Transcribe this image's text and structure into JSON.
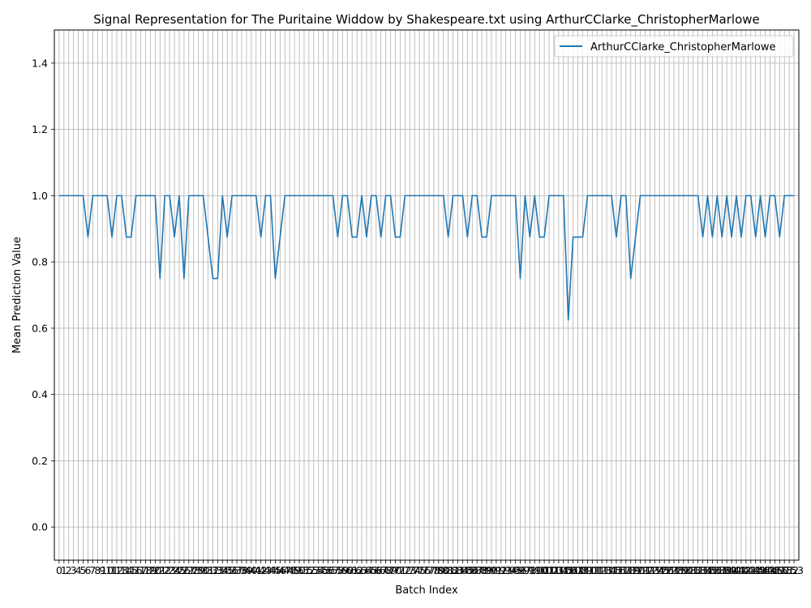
{
  "chart_data": {
    "type": "line",
    "title": "Signal Representation for The Puritaine Widdow by Shakespeare.txt using ArthurCClarke_ChristopherMarlowe",
    "xlabel": "Batch Index",
    "ylabel": "Mean Prediction Value",
    "ylim": [
      -0.1,
      1.5
    ],
    "xlim": [
      -1,
      154
    ],
    "yticks": [
      0.0,
      0.2,
      0.4,
      0.6,
      0.8,
      1.0,
      1.2,
      1.4
    ],
    "ytick_labels": [
      "0.0",
      "0.2",
      "0.4",
      "0.6",
      "0.8",
      "1.0",
      "1.2",
      "1.4"
    ],
    "grid": true,
    "legend_position": "top-right",
    "colors": {
      "series": "#1f77b4",
      "grid": "#b0b0b0",
      "axes": "#000000"
    },
    "x": [
      0,
      1,
      2,
      3,
      4,
      5,
      6,
      7,
      8,
      9,
      10,
      11,
      12,
      13,
      14,
      15,
      16,
      17,
      18,
      19,
      20,
      21,
      22,
      23,
      24,
      25,
      26,
      27,
      28,
      29,
      30,
      31,
      32,
      33,
      34,
      35,
      36,
      37,
      38,
      39,
      40,
      41,
      42,
      43,
      44,
      45,
      46,
      47,
      48,
      49,
      50,
      51,
      52,
      53,
      54,
      55,
      56,
      57,
      58,
      59,
      60,
      61,
      62,
      63,
      64,
      65,
      66,
      67,
      68,
      69,
      70,
      71,
      72,
      73,
      74,
      75,
      76,
      77,
      78,
      79,
      80,
      81,
      82,
      83,
      84,
      85,
      86,
      87,
      88,
      89,
      90,
      91,
      92,
      93,
      94,
      95,
      96,
      97,
      98,
      99,
      100,
      101,
      102,
      103,
      104,
      105,
      106,
      107,
      108,
      109,
      110,
      111,
      112,
      113,
      114,
      115,
      116,
      117,
      118,
      119,
      120,
      121,
      122,
      123,
      124,
      125,
      126,
      127,
      128,
      129,
      130,
      131,
      132,
      133,
      134,
      135,
      136,
      137,
      138,
      139,
      140,
      141,
      142,
      143,
      144,
      145,
      146,
      147,
      148,
      149,
      150,
      151,
      152,
      153
    ],
    "series": [
      {
        "name": "ArthurCClarke_ChristopherMarlowe",
        "values": [
          1,
          1,
          1,
          1,
          1,
          1,
          0.875,
          1,
          1,
          1,
          1,
          0.875,
          1,
          1,
          0.875,
          0.875,
          1,
          1,
          1,
          1,
          1,
          0.75,
          1,
          1,
          0.875,
          1,
          0.75,
          1,
          1,
          1,
          1,
          0.875,
          0.75,
          0.75,
          1,
          0.875,
          1,
          1,
          1,
          1,
          1,
          1,
          0.875,
          1,
          1,
          0.75,
          0.875,
          1,
          1,
          1,
          1,
          1,
          1,
          1,
          1,
          1,
          1,
          1,
          0.875,
          1,
          1,
          0.875,
          0.875,
          1,
          0.875,
          1,
          1,
          0.875,
          1,
          1,
          0.875,
          0.875,
          1,
          1,
          1,
          1,
          1,
          1,
          1,
          1,
          1,
          0.875,
          1,
          1,
          1,
          0.875,
          1,
          1,
          0.875,
          0.875,
          1,
          1,
          1,
          1,
          1,
          1,
          0.75,
          1,
          0.875,
          1,
          0.875,
          0.875,
          1,
          1,
          1,
          1,
          0.625,
          0.875,
          0.875,
          0.875,
          1,
          1,
          1,
          1,
          1,
          1,
          0.875,
          1,
          1,
          0.75,
          0.875,
          1,
          1,
          1,
          1,
          1,
          1,
          1,
          1,
          1,
          1,
          1,
          1,
          1,
          0.875,
          1,
          0.875,
          1,
          0.875,
          1,
          0.875,
          1,
          0.875,
          1,
          1,
          0.875,
          1,
          0.875,
          1,
          1,
          0.875,
          1,
          1,
          1
        ]
      }
    ]
  }
}
